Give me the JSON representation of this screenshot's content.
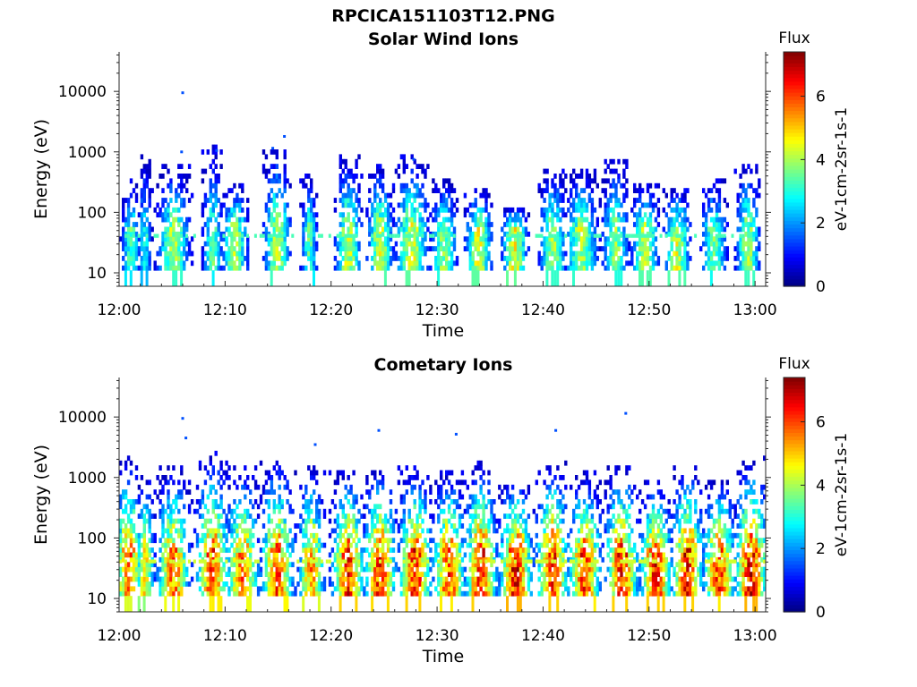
{
  "figure_title": "RPCICA151103T12.PNG",
  "chart_data": [
    {
      "type": "heatmap",
      "title": "Solar Wind Ions",
      "xlabel": "Time",
      "ylabel": "Energy (eV)",
      "x_ticks": [
        "12:00",
        "12:10",
        "12:20",
        "12:30",
        "12:40",
        "12:50",
        "13:00"
      ],
      "y_ticks": [
        "10",
        "100",
        "1000",
        "10000"
      ],
      "y_scale": "log",
      "xlim": [
        "12:00",
        "13:01"
      ],
      "ylim": [
        6,
        45000
      ],
      "colorbar": {
        "label": "Flux",
        "unit_label": "eV-1cm-2sr-1s-1",
        "ticks": [
          "0",
          "2",
          "4",
          "6"
        ],
        "range": [
          0,
          7.4
        ],
        "colormap": "jet"
      },
      "bursts": [
        {
          "center_min": 1.0,
          "width_min": 1.4,
          "peak": 3.5,
          "max_energy_eV": 300
        },
        {
          "center_min": 2.3,
          "width_min": 1.0,
          "peak": 3.0,
          "max_energy_eV": 750
        },
        {
          "center_min": 5.0,
          "width_min": 2.5,
          "peak": 4.2,
          "max_energy_eV": 500
        },
        {
          "center_min": 8.7,
          "width_min": 1.5,
          "peak": 3.6,
          "max_energy_eV": 1000
        },
        {
          "center_min": 10.8,
          "width_min": 2.0,
          "peak": 4.3,
          "max_energy_eV": 250
        },
        {
          "center_min": 14.8,
          "width_min": 2.0,
          "peak": 4.3,
          "max_energy_eV": 1100
        },
        {
          "center_min": 17.8,
          "width_min": 1.2,
          "peak": 3.6,
          "max_energy_eV": 350
        },
        {
          "center_min": 21.5,
          "width_min": 2.0,
          "peak": 4.5,
          "max_energy_eV": 700
        },
        {
          "center_min": 24.5,
          "width_min": 2.0,
          "peak": 4.5,
          "max_energy_eV": 500
        },
        {
          "center_min": 27.5,
          "width_min": 2.5,
          "peak": 4.6,
          "max_energy_eV": 750
        },
        {
          "center_min": 30.5,
          "width_min": 2.0,
          "peak": 4.0,
          "max_energy_eV": 300
        },
        {
          "center_min": 33.8,
          "width_min": 2.0,
          "peak": 4.6,
          "max_energy_eV": 200
        },
        {
          "center_min": 37.2,
          "width_min": 2.0,
          "peak": 4.7,
          "max_energy_eV": 100
        },
        {
          "center_min": 40.8,
          "width_min": 2.0,
          "peak": 4.2,
          "max_energy_eV": 450
        },
        {
          "center_min": 43.5,
          "width_min": 2.5,
          "peak": 4.2,
          "max_energy_eV": 450
        },
        {
          "center_min": 46.7,
          "width_min": 2.0,
          "peak": 4.0,
          "max_energy_eV": 600
        },
        {
          "center_min": 49.5,
          "width_min": 2.0,
          "peak": 4.5,
          "max_energy_eV": 250
        },
        {
          "center_min": 52.5,
          "width_min": 2.0,
          "peak": 4.5,
          "max_energy_eV": 200
        },
        {
          "center_min": 56.0,
          "width_min": 2.0,
          "peak": 3.8,
          "max_energy_eV": 300
        },
        {
          "center_min": 59.2,
          "width_min": 1.8,
          "peak": 4.3,
          "max_energy_eV": 550
        }
      ],
      "outliers": [
        {
          "t_min": 6.0,
          "energy_eV": 9500
        },
        {
          "t_min": 5.9,
          "energy_eV": 1000
        },
        {
          "t_min": 9.2,
          "energy_eV": 1050
        },
        {
          "t_min": 14.5,
          "energy_eV": 1150
        },
        {
          "t_min": 15.6,
          "energy_eV": 1800
        },
        {
          "t_min": 27.8,
          "energy_eV": 750
        }
      ]
    },
    {
      "type": "heatmap",
      "title": "Cometary Ions",
      "xlabel": "Time",
      "ylabel": "Energy (eV)",
      "x_ticks": [
        "12:00",
        "12:10",
        "12:20",
        "12:30",
        "12:40",
        "12:50",
        "13:00"
      ],
      "y_ticks": [
        "10",
        "100",
        "1000",
        "10000"
      ],
      "y_scale": "log",
      "xlim": [
        "12:00",
        "13:01"
      ],
      "ylim": [
        6,
        45000
      ],
      "colorbar": {
        "label": "Flux",
        "unit_label": "eV-1cm-2sr-1s-1",
        "ticks": [
          "0",
          "2",
          "4",
          "6"
        ],
        "range": [
          0,
          7.4
        ],
        "colormap": "jet"
      },
      "bursts": [
        {
          "center_min": 0.8,
          "width_min": 2.5,
          "peak": 5.8,
          "max_energy_eV": 2000
        },
        {
          "center_min": 2.3,
          "width_min": 1.5,
          "peak": 5.0,
          "max_energy_eV": 900
        },
        {
          "center_min": 5.0,
          "width_min": 2.5,
          "peak": 6.0,
          "max_energy_eV": 1200
        },
        {
          "center_min": 8.7,
          "width_min": 2.5,
          "peak": 6.3,
          "max_energy_eV": 2200
        },
        {
          "center_min": 11.5,
          "width_min": 2.5,
          "peak": 6.0,
          "max_energy_eV": 1200
        },
        {
          "center_min": 14.8,
          "width_min": 2.5,
          "peak": 6.2,
          "max_energy_eV": 1800
        },
        {
          "center_min": 18.0,
          "width_min": 2.0,
          "peak": 5.8,
          "max_energy_eV": 1300
        },
        {
          "center_min": 21.5,
          "width_min": 2.5,
          "peak": 6.6,
          "max_energy_eV": 1000
        },
        {
          "center_min": 24.5,
          "width_min": 2.5,
          "peak": 6.5,
          "max_energy_eV": 1300
        },
        {
          "center_min": 27.8,
          "width_min": 2.5,
          "peak": 6.6,
          "max_energy_eV": 1200
        },
        {
          "center_min": 31.0,
          "width_min": 2.5,
          "peak": 6.3,
          "max_energy_eV": 1000
        },
        {
          "center_min": 34.0,
          "width_min": 2.5,
          "peak": 6.6,
          "max_energy_eV": 1500
        },
        {
          "center_min": 37.3,
          "width_min": 2.5,
          "peak": 6.9,
          "max_energy_eV": 800
        },
        {
          "center_min": 40.8,
          "width_min": 2.5,
          "peak": 6.6,
          "max_energy_eV": 1500
        },
        {
          "center_min": 43.8,
          "width_min": 2.5,
          "peak": 6.3,
          "max_energy_eV": 1000
        },
        {
          "center_min": 47.3,
          "width_min": 2.5,
          "peak": 6.6,
          "max_energy_eV": 1300
        },
        {
          "center_min": 50.5,
          "width_min": 2.5,
          "peak": 6.6,
          "max_energy_eV": 700
        },
        {
          "center_min": 53.5,
          "width_min": 2.5,
          "peak": 6.6,
          "max_energy_eV": 1300
        },
        {
          "center_min": 56.5,
          "width_min": 2.5,
          "peak": 6.3,
          "max_energy_eV": 800
        },
        {
          "center_min": 59.5,
          "width_min": 2.5,
          "peak": 6.9,
          "max_energy_eV": 1800
        }
      ],
      "outliers": [
        {
          "t_min": 6.0,
          "energy_eV": 9500
        },
        {
          "t_min": 6.3,
          "energy_eV": 4500
        },
        {
          "t_min": 18.5,
          "energy_eV": 3500
        },
        {
          "t_min": 24.5,
          "energy_eV": 6000
        },
        {
          "t_min": 31.8,
          "energy_eV": 5200
        },
        {
          "t_min": 41.2,
          "energy_eV": 6000
        },
        {
          "t_min": 47.8,
          "energy_eV": 11500
        }
      ]
    }
  ]
}
